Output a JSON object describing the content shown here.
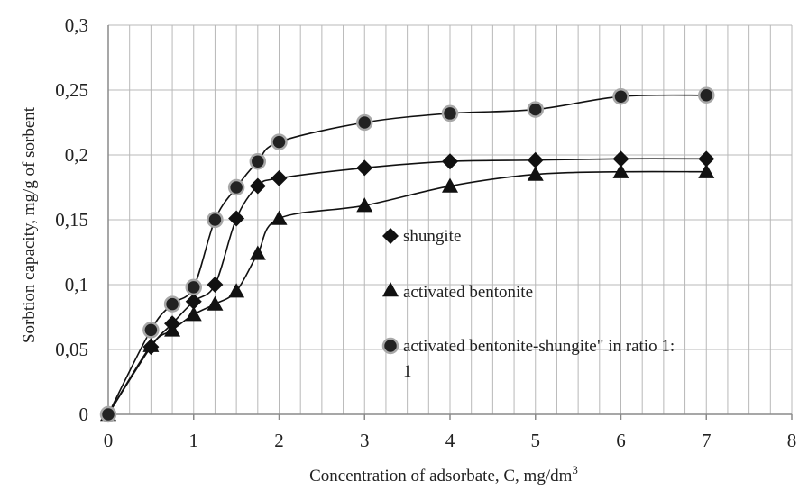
{
  "chart_data": {
    "type": "scatter",
    "title": "",
    "xlabel": "Concentration of adsorbate, C, mg/dm",
    "xlabel_superscript": "3",
    "ylabel": "Sorbtion capacity, mg/g  of sorbent",
    "xlim": [
      0,
      8
    ],
    "ylim": [
      0,
      0.3
    ],
    "x_ticks": [
      "0",
      "1",
      "2",
      "3",
      "4",
      "5",
      "6",
      "7",
      "8"
    ],
    "y_ticks": [
      "0",
      "0,05",
      "0,1",
      "0,15",
      "0,2",
      "0,25",
      "0,3"
    ],
    "grid": "vertical minor lines every 0.25, horizontal lines every 0.05",
    "smoothed_trend_lines": true,
    "legend_position": "center-right",
    "series": [
      {
        "name": "shungite",
        "marker": "diamond",
        "x": [
          0,
          0.5,
          0.75,
          1,
          1.25,
          1.5,
          1.75,
          2,
          3,
          4,
          5,
          6,
          7
        ],
        "y": [
          0,
          0.052,
          0.07,
          0.087,
          0.1,
          0.151,
          0.176,
          0.182,
          0.19,
          0.195,
          0.196,
          0.197,
          0.197
        ]
      },
      {
        "name": "activated bentonite",
        "marker": "triangle",
        "x": [
          0,
          0.5,
          0.75,
          1,
          1.25,
          1.5,
          1.75,
          2,
          3,
          4,
          5,
          6,
          7
        ],
        "y": [
          0,
          0.053,
          0.065,
          0.077,
          0.085,
          0.095,
          0.124,
          0.151,
          0.161,
          0.176,
          0.185,
          0.187,
          0.187
        ]
      },
      {
        "name": "activated bentonite-shungite\" in ratio 1:\n1",
        "legend_lines": [
          "activated bentonite-shungite\" in ratio 1:",
          "1"
        ],
        "marker": "circle",
        "x": [
          0,
          0.5,
          0.75,
          1,
          1.25,
          1.5,
          1.75,
          2,
          3,
          4,
          5,
          6,
          7
        ],
        "y": [
          0,
          0.065,
          0.085,
          0.098,
          0.15,
          0.175,
          0.195,
          0.21,
          0.225,
          0.232,
          0.235,
          0.245,
          0.246
        ]
      }
    ]
  }
}
